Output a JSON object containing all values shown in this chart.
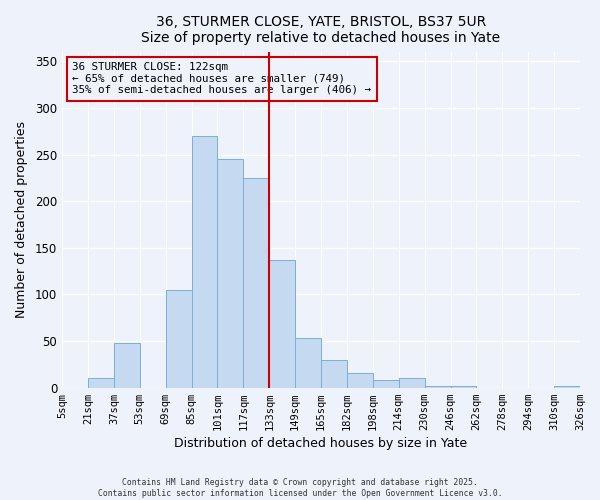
{
  "title": "36, STURMER CLOSE, YATE, BRISTOL, BS37 5UR",
  "subtitle": "Size of property relative to detached houses in Yate",
  "xlabel": "Distribution of detached houses by size in Yate",
  "ylabel": "Number of detached properties",
  "bin_labels": [
    "5sqm",
    "21sqm",
    "37sqm",
    "53sqm",
    "69sqm",
    "85sqm",
    "101sqm",
    "117sqm",
    "133sqm",
    "149sqm",
    "165sqm",
    "182sqm",
    "198sqm",
    "214sqm",
    "230sqm",
    "246sqm",
    "262sqm",
    "278sqm",
    "294sqm",
    "310sqm",
    "326sqm"
  ],
  "bar_values": [
    0,
    10,
    48,
    0,
    105,
    270,
    245,
    225,
    137,
    53,
    30,
    16,
    8,
    10,
    2,
    2,
    0,
    0,
    0,
    2
  ],
  "bar_color": "#c5d9f1",
  "bar_edge_color": "#7bafd4",
  "vline_color": "#cc0000",
  "vline_index": 7.5,
  "annotation_text": "36 STURMER CLOSE: 122sqm\n← 65% of detached houses are smaller (749)\n35% of semi-detached houses are larger (406) →",
  "annotation_box_edgecolor": "#cc0000",
  "ylim": [
    0,
    360
  ],
  "yticks": [
    0,
    50,
    100,
    150,
    200,
    250,
    300,
    350
  ],
  "footnote": "Contains HM Land Registry data © Crown copyright and database right 2025.\nContains public sector information licensed under the Open Government Licence v3.0.",
  "bg_color": "#eef2fb",
  "grid_color": "#ffffff"
}
